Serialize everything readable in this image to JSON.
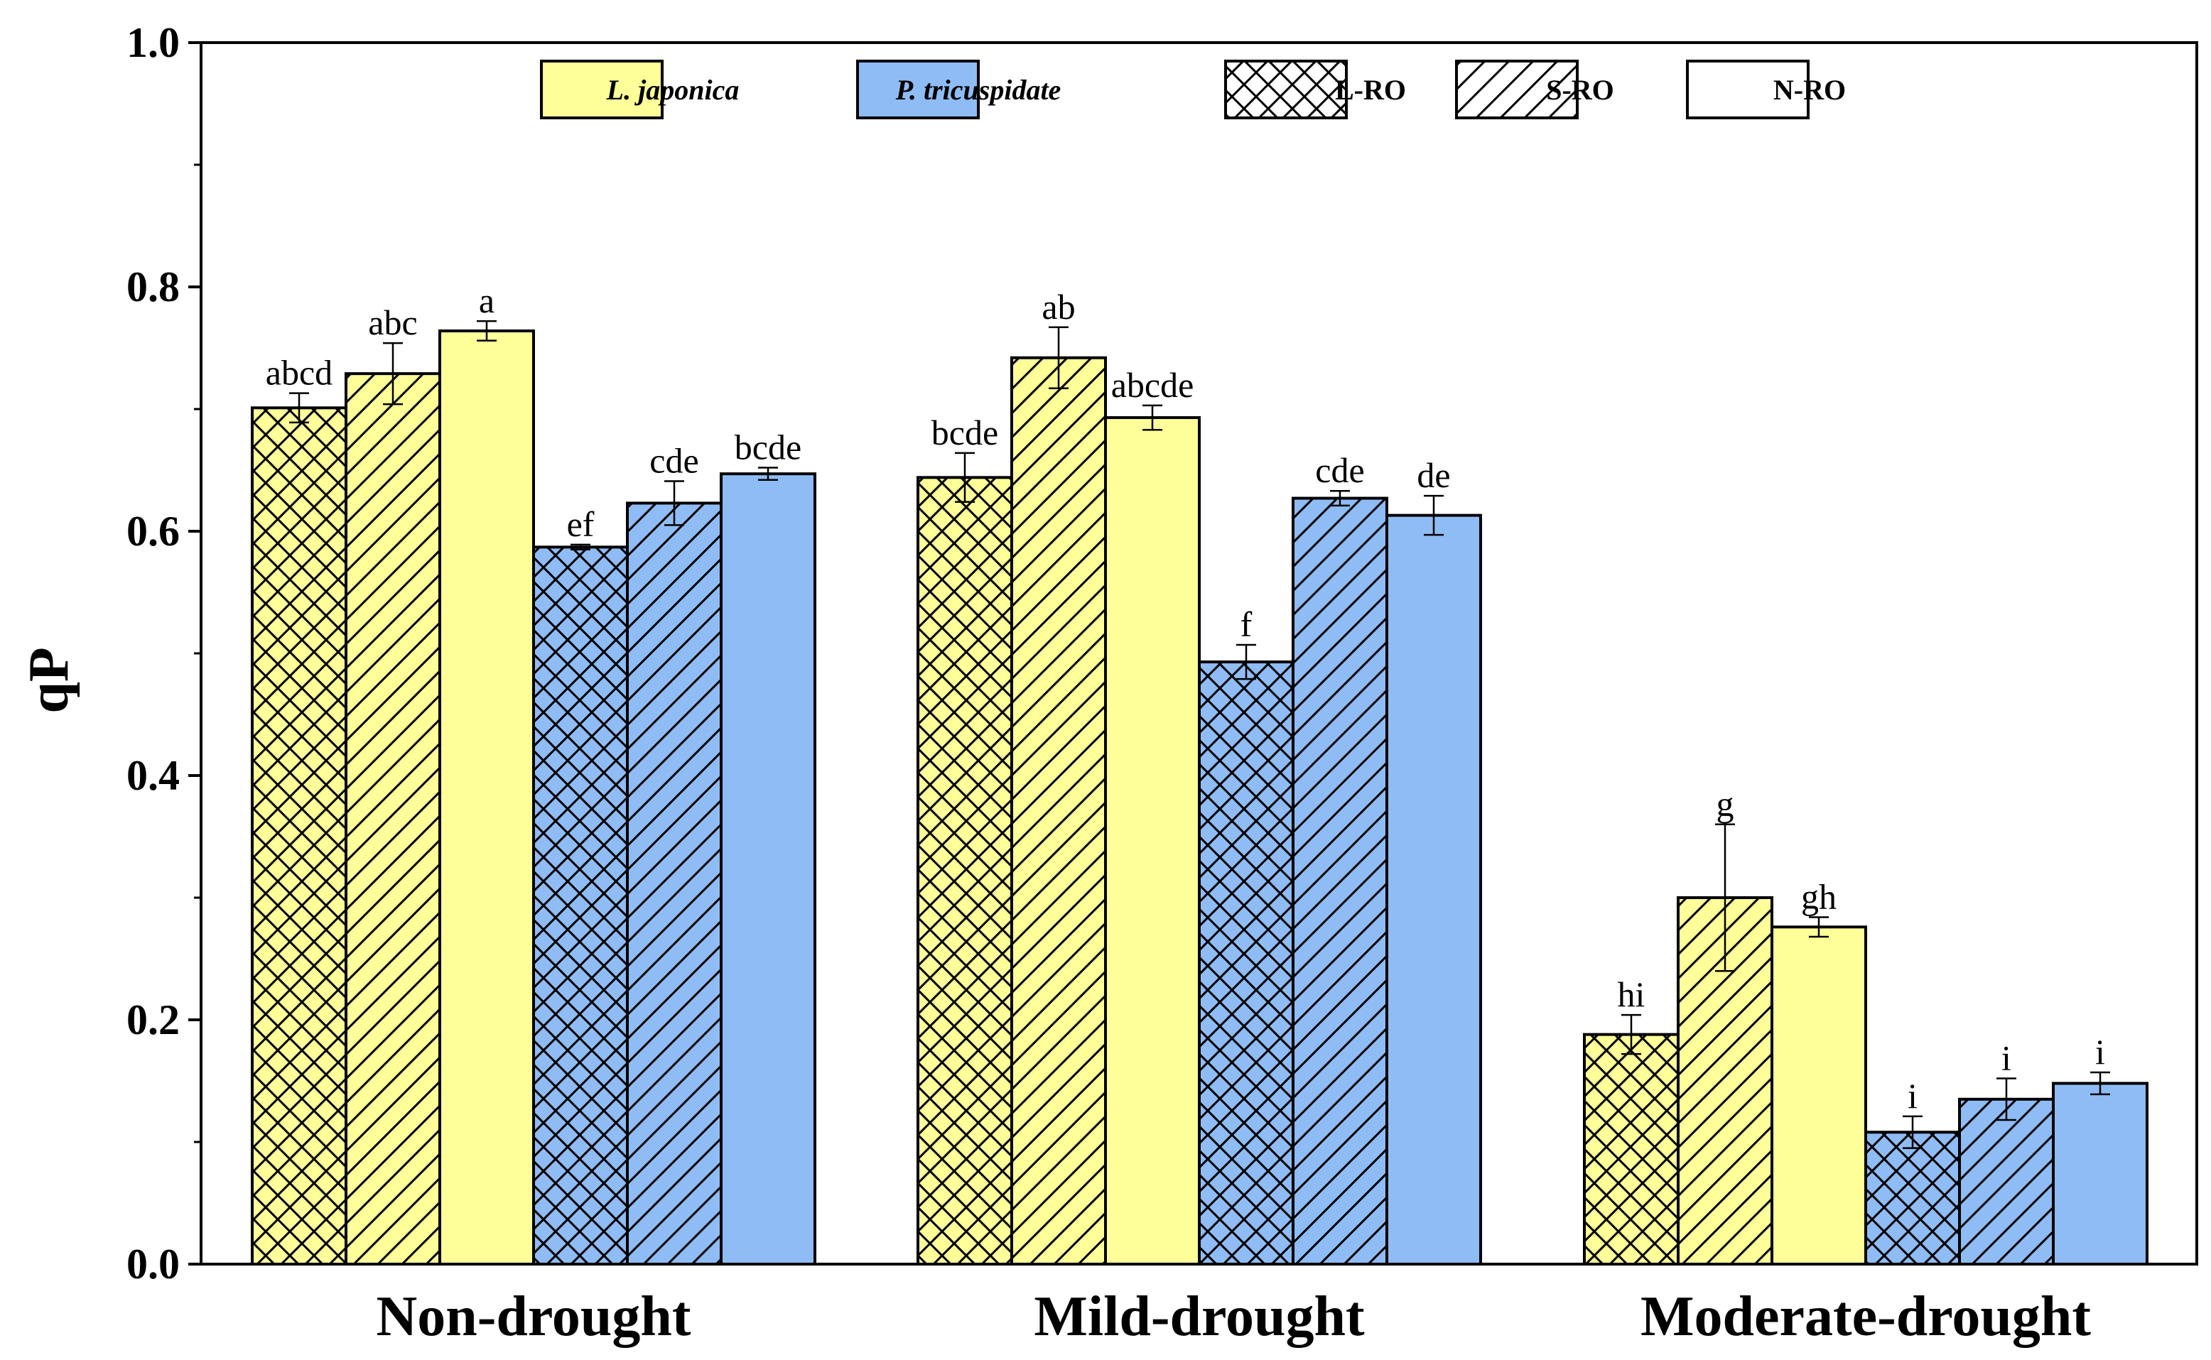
{
  "chart_data": {
    "type": "bar",
    "title": "",
    "xlabel": "",
    "ylabel": "qP",
    "ylim": [
      0.0,
      1.0
    ],
    "yticks": [
      "0.0",
      "0.2",
      "0.4",
      "0.6",
      "0.8",
      "1.0"
    ],
    "categories": [
      "Non-drought",
      "Mild-drought",
      "Moderate-drought"
    ],
    "colors": {
      "L_japonica": "#FFFF99",
      "P_tricuspidate": "#8FBCF4"
    },
    "series": [
      {
        "name": "L. japonica L-RO",
        "species": "L_japonica",
        "pattern": "cross",
        "values": [
          0.701,
          0.644,
          0.188
        ],
        "errors": [
          0.012,
          0.02,
          0.016
        ],
        "labels": [
          "abcd",
          "bcde",
          "hi"
        ]
      },
      {
        "name": "L. japonica S-RO",
        "species": "L_japonica",
        "pattern": "diag",
        "values": [
          0.729,
          0.742,
          0.3
        ],
        "errors": [
          0.025,
          0.025,
          0.06
        ],
        "labels": [
          "abc",
          "ab",
          "g"
        ]
      },
      {
        "name": "L. japonica N-RO",
        "species": "L_japonica",
        "pattern": "none",
        "values": [
          0.764,
          0.693,
          0.276
        ],
        "errors": [
          0.008,
          0.01,
          0.008
        ],
        "labels": [
          "a",
          "abcde",
          "gh"
        ]
      },
      {
        "name": "P. tricuspidate L-RO",
        "species": "P_tricuspidate",
        "pattern": "cross",
        "values": [
          0.587,
          0.493,
          0.108
        ],
        "errors": [
          0.002,
          0.014,
          0.013
        ],
        "labels": [
          "ef",
          "f",
          "i"
        ]
      },
      {
        "name": "P. tricuspidate S-RO",
        "species": "P_tricuspidate",
        "pattern": "diag",
        "values": [
          0.623,
          0.627,
          0.135
        ],
        "errors": [
          0.018,
          0.006,
          0.017
        ],
        "labels": [
          "cde",
          "cde",
          "i"
        ]
      },
      {
        "name": "P. tricuspidate N-RO",
        "species": "P_tricuspidate",
        "pattern": "none",
        "values": [
          0.647,
          0.613,
          0.148
        ],
        "errors": [
          0.005,
          0.016,
          0.009
        ],
        "labels": [
          "bcde",
          "de",
          "i"
        ]
      }
    ],
    "legend": [
      {
        "label": "L. japonica",
        "kind": "species",
        "species": "L_japonica",
        "italic": true
      },
      {
        "label": "P. tricuspidate",
        "kind": "species",
        "species": "P_tricuspidate",
        "italic": true
      },
      {
        "label": "L-RO",
        "kind": "pattern",
        "pattern": "cross",
        "italic": false
      },
      {
        "label": "S-RO",
        "kind": "pattern",
        "pattern": "diag",
        "italic": false
      },
      {
        "label": "N-RO",
        "kind": "pattern",
        "pattern": "none",
        "italic": false
      }
    ]
  }
}
